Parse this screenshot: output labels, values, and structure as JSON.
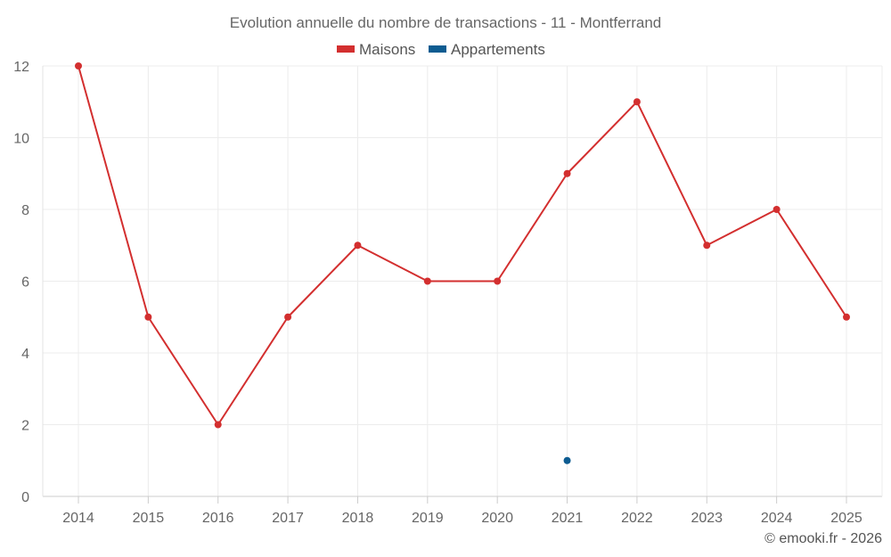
{
  "chart_data": {
    "type": "line",
    "title": "Evolution annuelle du nombre de transactions - 11 - Montferrand",
    "categories": [
      "2014",
      "2015",
      "2016",
      "2017",
      "2018",
      "2019",
      "2020",
      "2021",
      "2022",
      "2023",
      "2024",
      "2025"
    ],
    "series": [
      {
        "name": "Maisons",
        "color": "#d32f2f",
        "values": [
          12,
          5,
          2,
          5,
          7,
          6,
          6,
          9,
          11,
          7,
          8,
          5
        ]
      },
      {
        "name": "Appartements",
        "color": "#0d5c91",
        "values": [
          null,
          null,
          null,
          null,
          null,
          null,
          null,
          1,
          null,
          null,
          null,
          null
        ]
      }
    ],
    "yticks": [
      "0",
      "2",
      "4",
      "6",
      "8",
      "10",
      "12"
    ],
    "ylim": [
      0,
      12
    ],
    "grid": true,
    "legend": "top-center",
    "xlabel": "",
    "ylabel": ""
  },
  "credit": "© emooki.fr - 2026"
}
